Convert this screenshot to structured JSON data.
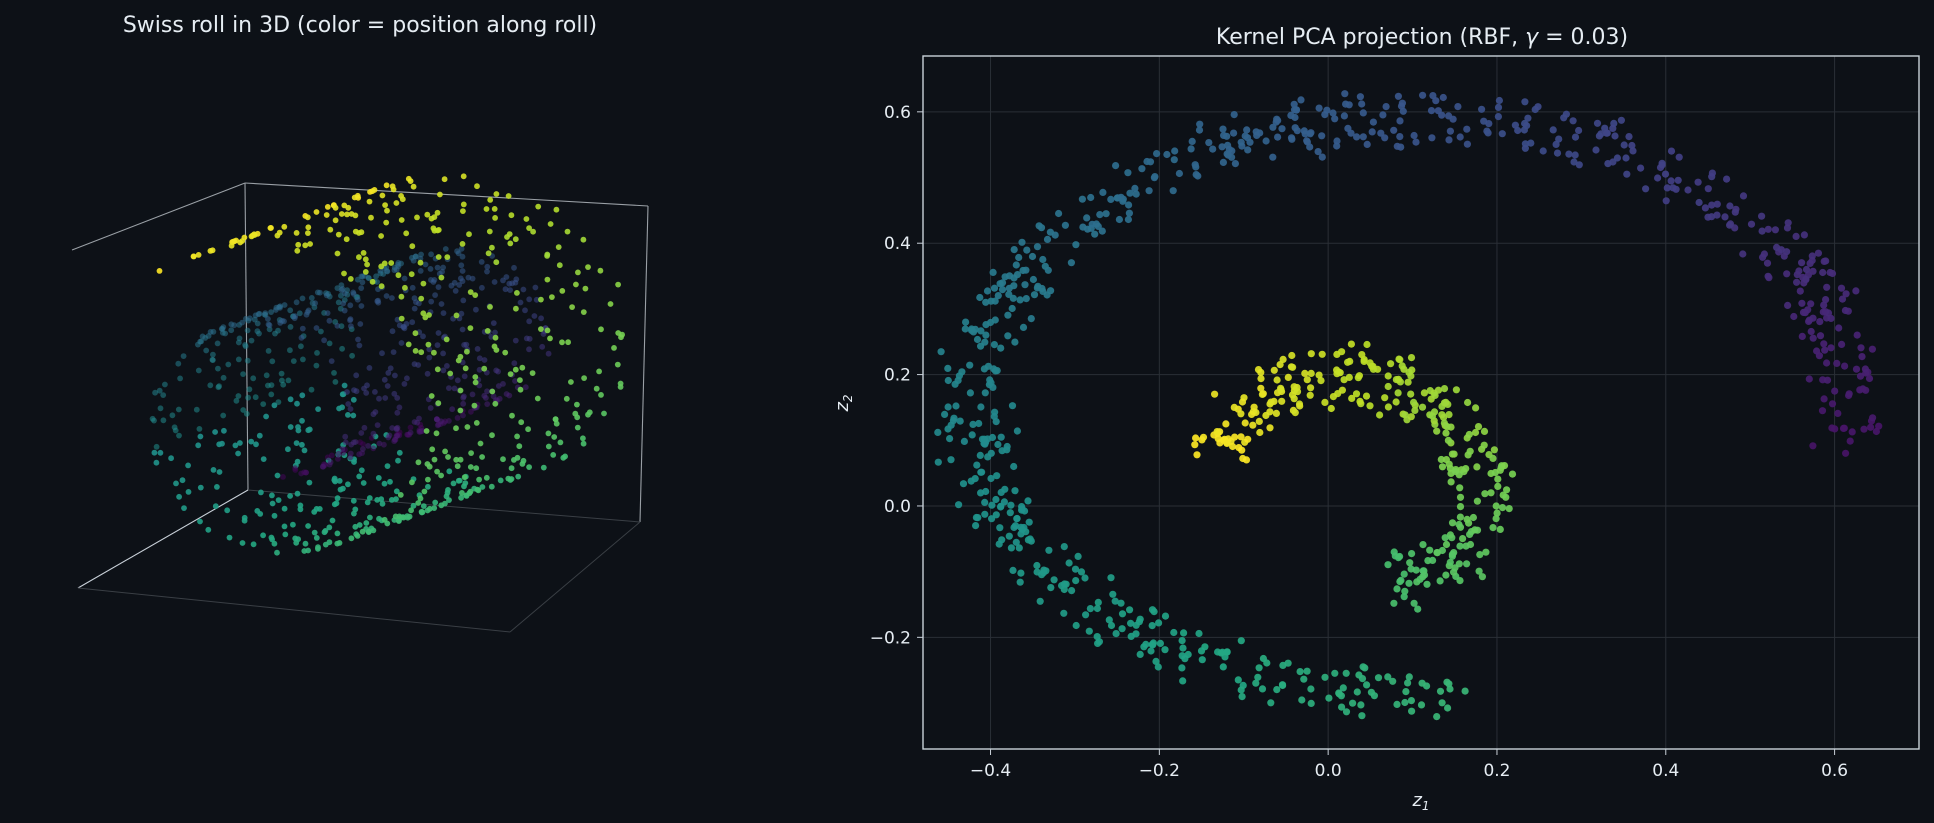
{
  "figure": {
    "background": "#0d1117",
    "text_color": "#e6edf3"
  },
  "chart_data": [
    {
      "type": "scatter3d",
      "title": "Swiss roll in 3D (color = position along roll)",
      "colormap": "viridis",
      "color_meaning": "position along roll",
      "point_count": 1000,
      "roll_parameter_range": [
        1.5,
        4.7
      ],
      "height_range": [
        0,
        21
      ],
      "axes_visible": false
    },
    {
      "type": "scatter",
      "title": "Kernel PCA projection (RBF, γ = 0.03)",
      "title_parts": {
        "prefix": "Kernel PCA projection (RBF, ",
        "gamma_symbol": "γ",
        "eq": " = 0.03)"
      },
      "xlabel": {
        "base": "z",
        "sub": "1"
      },
      "ylabel": {
        "base": "z",
        "sub": "2"
      },
      "xlim": [
        -0.48,
        0.7
      ],
      "ylim": [
        -0.37,
        0.685
      ],
      "xticks": [
        -0.4,
        -0.2,
        0.0,
        0.2,
        0.4,
        0.6
      ],
      "yticks": [
        -0.2,
        0.0,
        0.2,
        0.4,
        0.6
      ],
      "xtick_labels": [
        "−0.4",
        "−0.2",
        "0.0",
        "0.2",
        "0.4",
        "0.6"
      ],
      "ytick_labels": [
        "−0.2",
        "0.0",
        "0.2",
        "0.4",
        "0.6"
      ],
      "grid": true,
      "colormap": "viridis",
      "point_count": 1000,
      "structure": {
        "outer_arc": {
          "center": [
            0.1,
            0.15
          ],
          "radius_x": [
            0.48,
            0.56
          ],
          "radius_y": [
            0.4,
            0.48
          ],
          "colors": "purple → blue → teal → green"
        },
        "inner_arc": {
          "center": [
            0.02,
            0.03
          ],
          "radius_x": [
            0.12,
            0.2
          ],
          "radius_y": [
            0.12,
            0.22
          ],
          "colors": "green → yellow"
        }
      }
    }
  ]
}
